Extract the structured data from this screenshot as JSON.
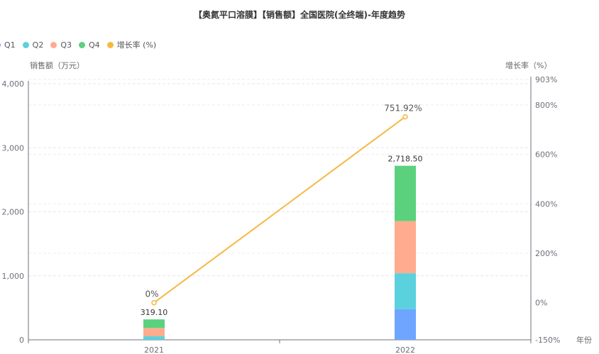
{
  "title": "【奥氮平口溶膜】【销售额】全国医院(全终端)-年度趋势",
  "legend": [
    {
      "label": "Q1",
      "color": "#6ea6ff"
    },
    {
      "label": "Q2",
      "color": "#5bd1de"
    },
    {
      "label": "Q3",
      "color": "#ffac8e"
    },
    {
      "label": "Q4",
      "color": "#5bd17e"
    },
    {
      "label": "增长率 (%)",
      "color": "#f5b942"
    }
  ],
  "y_left_name": "销售额（万元）",
  "y_right_name": "增长率（%）",
  "x_name": "年份",
  "chart_data": {
    "type": "bar",
    "stacked": true,
    "categories": [
      "2021",
      "2022"
    ],
    "series": [
      {
        "name": "Q1",
        "values": [
          0,
          480
        ]
      },
      {
        "name": "Q2",
        "values": [
          55,
          560
        ]
      },
      {
        "name": "Q3",
        "values": [
          130,
          815
        ]
      },
      {
        "name": "Q4",
        "values": [
          134.1,
          863.5
        ]
      }
    ],
    "totals": [
      319.1,
      2718.5
    ],
    "total_labels": [
      "319.10",
      "2,718.50"
    ],
    "line_series": {
      "name": "增长率 (%)",
      "values": [
        0,
        751.92
      ],
      "labels": [
        "0%",
        "751.92%"
      ]
    },
    "y_left": {
      "ticks": [
        0,
        1000,
        2000,
        3000,
        4000
      ],
      "tick_labels": [
        "0",
        "1,000",
        "2,000",
        "3,000",
        "4,000"
      ],
      "range": [
        0,
        4000
      ]
    },
    "y_right": {
      "ticks": [
        -150,
        0,
        200,
        400,
        600,
        800,
        903
      ],
      "tick_labels": [
        "-150%",
        "0%",
        "200%",
        "400%",
        "600%",
        "800%",
        "903%"
      ],
      "range": [
        -150,
        903
      ]
    },
    "grid": true
  }
}
